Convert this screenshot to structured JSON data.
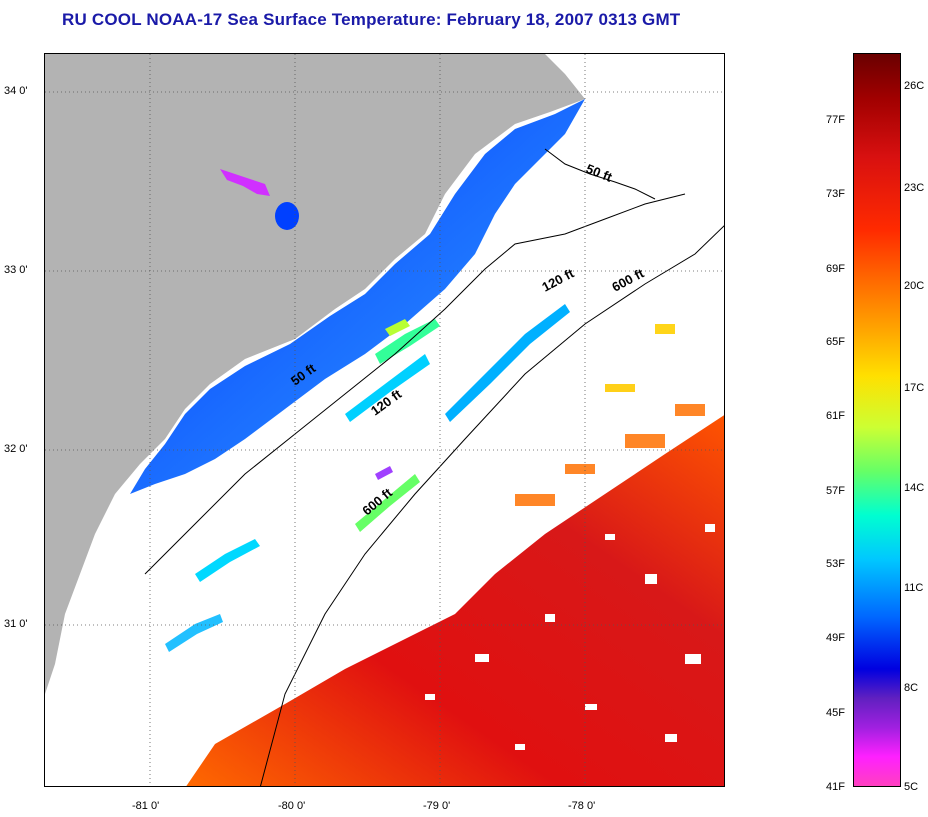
{
  "title": "RU COOL  NOAA-17  Sea Surface Temperature:  February 18, 2007 0313 GMT",
  "map": {
    "lat_labels": [
      "34 0'",
      "33 0'",
      "32 0'",
      "31 0'"
    ],
    "lon_labels": [
      "-81 0'",
      "-80 0'",
      "-79 0'",
      "-78 0'"
    ],
    "depth_labels": {
      "d50_north": "50 ft",
      "d120_north": "120 ft",
      "d600_north": "600 ft",
      "d50_south": "50 ft",
      "d120_south": "120 ft",
      "d600_south": "600 ft"
    },
    "colors": {
      "land": "#b3b3b3",
      "cloud": "#ffffff",
      "cold": "#1060ff",
      "warm": "#e01010"
    }
  },
  "colorbar": {
    "celsius": [
      "26C",
      "23C",
      "20C",
      "17C",
      "14C",
      "11C",
      "8C",
      "5C"
    ],
    "fahrenheit": [
      "77F",
      "73F",
      "69F",
      "65F",
      "61F",
      "57F",
      "53F",
      "49F",
      "45F",
      "41F"
    ]
  }
}
